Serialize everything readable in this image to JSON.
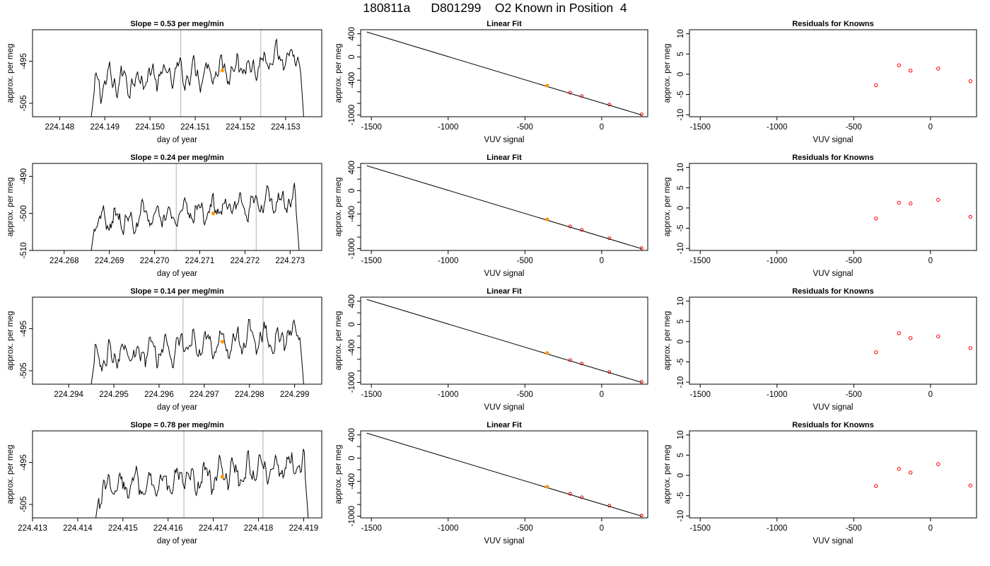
{
  "title": "180811a      D801299    O2 Known in Position  4",
  "colors": {
    "trace": "#000000",
    "vertical_lines": "#bdbdbd",
    "known_marker": "#ff9900",
    "fit_point": "#cc0000",
    "residual_point": "#ff0000",
    "axis": "#000000"
  },
  "chart_data": [
    {
      "type": "line",
      "title": "Slope =  0.53  per meg/min",
      "xlabel": "day of year",
      "ylabel": "approx. per meg",
      "xlim": [
        224.1474,
        224.1538
      ],
      "ylim": [
        -508.2,
        -487.5
      ],
      "xticks": [
        "224.148",
        "224.149",
        "224.150",
        "224.151",
        "224.152",
        "224.153"
      ],
      "yticks": [
        "-495",
        "-505"
      ],
      "vlines": [
        224.15068,
        224.15245
      ],
      "highlight": {
        "x": 224.1516,
        "y": -497.2
      },
      "trace_x_range": [
        224.1487,
        224.1534
      ],
      "trace_start_y": -508.2,
      "trace_end_y": -508.2,
      "trace_level_start": -500.5,
      "trace_level_end": -494.5
    },
    {
      "type": "scatter",
      "title": "Linear Fit",
      "xlabel": "VUV signal",
      "ylabel": "approx. per meg",
      "xlim": [
        -1570,
        300
      ],
      "ylim": [
        -1030,
        470
      ],
      "xticks": [
        "-1500",
        "-1000",
        "-500",
        "0"
      ],
      "yticks": [
        "400",
        "0",
        "-400",
        "-1000"
      ],
      "fit_line": {
        "x": [
          -1530,
          260
        ],
        "y": [
          430,
          -1000
        ]
      },
      "points": [
        {
          "x": -355,
          "y": -495
        },
        {
          "x": -205,
          "y": -615
        },
        {
          "x": -130,
          "y": -675
        },
        {
          "x": 50,
          "y": -820
        },
        {
          "x": 260,
          "y": -990
        }
      ],
      "highlight_point": {
        "x": -355,
        "y": -495
      }
    },
    {
      "type": "scatter",
      "title": "Residuals for Knowns",
      "xlabel": "VUV signal",
      "ylabel": "approx. per meg",
      "xlim": [
        -1570,
        300
      ],
      "ylim": [
        -10.5,
        11
      ],
      "xticks": [
        "-1500",
        "-1000",
        "-500",
        "0"
      ],
      "yticks": [
        "10",
        "5",
        "0",
        "-5",
        "-10"
      ],
      "points": [
        {
          "x": -355,
          "y": -2.7
        },
        {
          "x": -205,
          "y": 2.2
        },
        {
          "x": -130,
          "y": 0.9
        },
        {
          "x": 50,
          "y": 1.4
        },
        {
          "x": 260,
          "y": -1.7
        }
      ]
    },
    {
      "type": "line",
      "title": "Slope =  0.24  per meg/min",
      "xlabel": "day of year",
      "ylabel": "approx. per meg",
      "xlim": [
        224.2673,
        224.2737
      ],
      "ylim": [
        -510,
        -486.5
      ],
      "xticks": [
        "224.268",
        "224.269",
        "224.270",
        "224.271",
        "224.272",
        "224.273"
      ],
      "yticks": [
        "-490",
        "-500",
        "-510"
      ],
      "vlines": [
        224.27048,
        224.27225
      ],
      "highlight": {
        "x": 224.2713,
        "y": -500.0
      },
      "trace_x_range": [
        224.2686,
        224.2732
      ],
      "trace_start_y": -510,
      "trace_end_y": -510,
      "trace_level_start": -502.5,
      "trace_level_end": -496.5
    },
    {
      "type": "scatter",
      "title": "Linear Fit",
      "xlabel": "VUV signal",
      "ylabel": "approx. per meg",
      "xlim": [
        -1570,
        300
      ],
      "ylim": [
        -1030,
        470
      ],
      "xticks": [
        "-1500",
        "-1000",
        "-500",
        "0"
      ],
      "yticks": [
        "400",
        "0",
        "-400",
        "-1000"
      ],
      "fit_line": {
        "x": [
          -1530,
          260
        ],
        "y": [
          430,
          -1000
        ]
      },
      "points": [
        {
          "x": -355,
          "y": -495
        },
        {
          "x": -205,
          "y": -615
        },
        {
          "x": -130,
          "y": -675
        },
        {
          "x": 50,
          "y": -820
        },
        {
          "x": 260,
          "y": -990
        }
      ],
      "highlight_point": {
        "x": -355,
        "y": -495
      }
    },
    {
      "type": "scatter",
      "title": "Residuals for Knowns",
      "xlabel": "VUV signal",
      "ylabel": "approx. per meg",
      "xlim": [
        -1570,
        300
      ],
      "ylim": [
        -10.5,
        11
      ],
      "xticks": [
        "-1500",
        "-1000",
        "-500",
        "0"
      ],
      "yticks": [
        "10",
        "5",
        "0",
        "-5",
        "-10"
      ],
      "points": [
        {
          "x": -355,
          "y": -2.6
        },
        {
          "x": -205,
          "y": 1.3
        },
        {
          "x": -130,
          "y": 1.1
        },
        {
          "x": 50,
          "y": 2.0
        },
        {
          "x": 260,
          "y": -2.2
        }
      ]
    },
    {
      "type": "line",
      "title": "Slope =  0.14  per meg/min",
      "xlabel": "day of year",
      "ylabel": "approx. per meg",
      "xlim": [
        224.2932,
        224.2996
      ],
      "ylim": [
        -508.2,
        -487.5
      ],
      "xticks": [
        "224.294",
        "224.295",
        "224.296",
        "224.297",
        "224.298",
        "224.299"
      ],
      "yticks": [
        "-495",
        "-505"
      ],
      "vlines": [
        224.29653,
        224.2983
      ],
      "highlight": {
        "x": 224.2974,
        "y": -498.1
      },
      "trace_x_range": [
        224.2945,
        224.2992
      ],
      "trace_start_y": -508.2,
      "trace_end_y": -508.2,
      "trace_level_start": -501.5,
      "trace_level_end": -496.5
    },
    {
      "type": "scatter",
      "title": "Linear Fit",
      "xlabel": "VUV signal",
      "ylabel": "approx. per meg",
      "xlim": [
        -1570,
        300
      ],
      "ylim": [
        -1030,
        470
      ],
      "xticks": [
        "-1500",
        "-1000",
        "-500",
        "0"
      ],
      "yticks": [
        "400",
        "0",
        "-400",
        "-1000"
      ],
      "fit_line": {
        "x": [
          -1530,
          260
        ],
        "y": [
          430,
          -1000
        ]
      },
      "points": [
        {
          "x": -355,
          "y": -495
        },
        {
          "x": -205,
          "y": -615
        },
        {
          "x": -130,
          "y": -675
        },
        {
          "x": 50,
          "y": -820
        },
        {
          "x": 260,
          "y": -990
        }
      ],
      "highlight_point": {
        "x": -355,
        "y": -495
      }
    },
    {
      "type": "scatter",
      "title": "Residuals for Knowns",
      "xlabel": "VUV signal",
      "ylabel": "approx. per meg",
      "xlim": [
        -1570,
        300
      ],
      "ylim": [
        -10.5,
        11
      ],
      "xticks": [
        "-1500",
        "-1000",
        "-500",
        "0"
      ],
      "yticks": [
        "10",
        "5",
        "0",
        "-5",
        "-10"
      ],
      "points": [
        {
          "x": -355,
          "y": -2.6
        },
        {
          "x": -205,
          "y": 2.1
        },
        {
          "x": -130,
          "y": 0.9
        },
        {
          "x": 50,
          "y": 1.3
        },
        {
          "x": 260,
          "y": -1.6
        }
      ]
    },
    {
      "type": "line",
      "title": "Slope =  0.78  per meg/min",
      "xlabel": "day of year",
      "ylabel": "approx. per meg",
      "xlim": [
        224.413,
        224.4194
      ],
      "ylim": [
        -508.2,
        -487.5
      ],
      "xticks": [
        "224.413",
        "224.414",
        "224.415",
        "224.416",
        "224.417",
        "224.418",
        "224.419"
      ],
      "yticks": [
        "-495",
        "-505"
      ],
      "vlines": [
        224.41635,
        224.4181
      ],
      "highlight": {
        "x": 224.4172,
        "y": -498.4
      },
      "trace_x_range": [
        224.4144,
        224.4191
      ],
      "trace_start_y": -508.2,
      "trace_end_y": -508.2,
      "trace_level_start": -502,
      "trace_level_end": -495.5
    },
    {
      "type": "scatter",
      "title": "Linear Fit",
      "xlabel": "VUV signal",
      "ylabel": "approx. per meg",
      "xlim": [
        -1570,
        300
      ],
      "ylim": [
        -1030,
        470
      ],
      "xticks": [
        "-1500",
        "-1000",
        "-500",
        "0"
      ],
      "yticks": [
        "400",
        "0",
        "-400",
        "-1000"
      ],
      "fit_line": {
        "x": [
          -1530,
          260
        ],
        "y": [
          430,
          -1000
        ]
      },
      "points": [
        {
          "x": -355,
          "y": -495
        },
        {
          "x": -205,
          "y": -615
        },
        {
          "x": -130,
          "y": -675
        },
        {
          "x": 50,
          "y": -820
        },
        {
          "x": 260,
          "y": -990
        }
      ],
      "highlight_point": {
        "x": -355,
        "y": -495
      }
    },
    {
      "type": "scatter",
      "title": "Residuals for Knowns",
      "xlabel": "VUV signal",
      "ylabel": "approx. per meg",
      "xlim": [
        -1570,
        300
      ],
      "ylim": [
        -10.5,
        11
      ],
      "xticks": [
        "-1500",
        "-1000",
        "-500",
        "0"
      ],
      "yticks": [
        "10",
        "5",
        "0",
        "-5",
        "-10"
      ],
      "points": [
        {
          "x": -355,
          "y": -2.6
        },
        {
          "x": -205,
          "y": 1.6
        },
        {
          "x": -130,
          "y": 0.7
        },
        {
          "x": 50,
          "y": 2.8
        },
        {
          "x": 260,
          "y": -2.5
        }
      ]
    }
  ]
}
